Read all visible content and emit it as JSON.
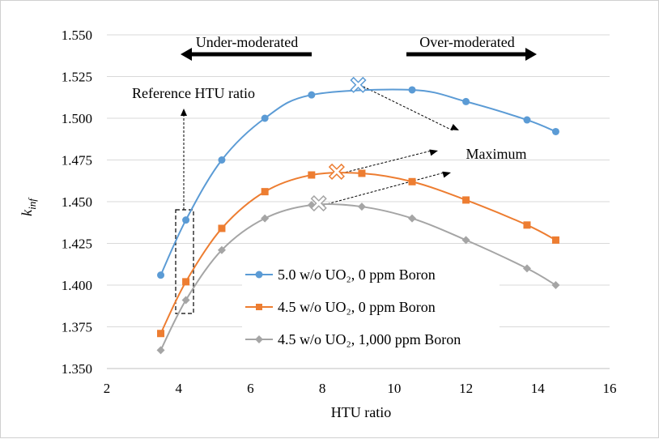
{
  "chart_data": {
    "type": "line",
    "xlabel": "HTU ratio",
    "ylabel": "k",
    "ylabel_sub": "inf",
    "xlim": [
      2,
      16
    ],
    "ylim": [
      1.35,
      1.55
    ],
    "x_ticks": [
      "2",
      "4",
      "6",
      "8",
      "10",
      "12",
      "14",
      "16"
    ],
    "y_ticks": [
      "1.350",
      "1.375",
      "1.400",
      "1.425",
      "1.450",
      "1.475",
      "1.500",
      "1.525",
      "1.550"
    ],
    "grid": "horizontal",
    "series": [
      {
        "name": "5.0 w/o UO₂, 0 ppm Boron",
        "color": "#5b9bd5",
        "marker": "circle",
        "x": [
          3.5,
          4.2,
          5.2,
          6.4,
          7.7,
          10.5,
          12.0,
          13.7,
          14.5
        ],
        "y": [
          1.406,
          1.439,
          1.475,
          1.5,
          1.514,
          1.517,
          1.51,
          1.499,
          1.492
        ],
        "maximum": {
          "x": 9.0,
          "y": 1.52
        }
      },
      {
        "name": "4.5 w/o UO₂, 0 ppm Boron",
        "color": "#ed7d31",
        "marker": "square",
        "x": [
          3.5,
          4.2,
          5.2,
          6.4,
          7.7,
          9.1,
          10.5,
          12.0,
          13.7,
          14.5
        ],
        "y": [
          1.371,
          1.402,
          1.434,
          1.456,
          1.466,
          1.467,
          1.462,
          1.451,
          1.436,
          1.427
        ],
        "maximum": {
          "x": 8.4,
          "y": 1.468
        }
      },
      {
        "name": "4.5 w/o UO₂, 1,000 ppm Boron",
        "color": "#a5a5a5",
        "marker": "diamond",
        "x": [
          3.5,
          4.2,
          5.2,
          6.4,
          7.7,
          9.1,
          10.5,
          12.0,
          13.7,
          14.5
        ],
        "y": [
          1.361,
          1.391,
          1.421,
          1.44,
          1.448,
          1.447,
          1.44,
          1.427,
          1.41,
          1.4
        ],
        "maximum": {
          "x": 7.9,
          "y": 1.449
        }
      }
    ],
    "annotations": {
      "under": "Under-moderated",
      "over": "Over-moderated",
      "reference": "Reference HTU ratio",
      "maximum": "Maximum"
    },
    "legend_position": "bottom-center"
  }
}
